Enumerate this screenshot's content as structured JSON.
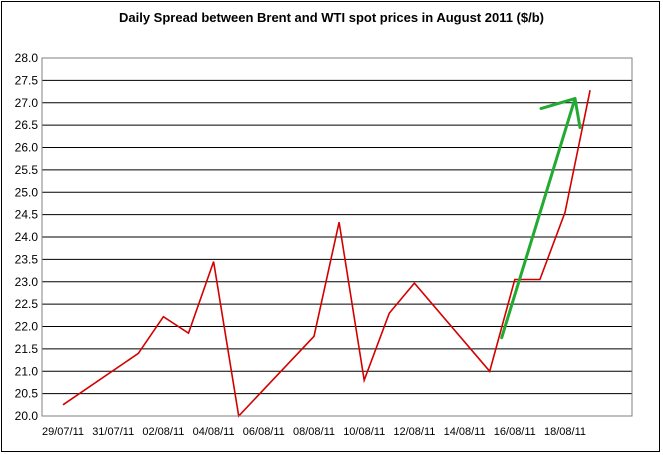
{
  "chart_data": {
    "type": "line",
    "title": "Daily Spread between Brent and WTI spot prices in August 2011 ($/b)",
    "xlabel": "",
    "ylabel": "",
    "ylim": [
      20.0,
      28.0
    ],
    "y_ticks": [
      "20.0",
      "20.5",
      "21.0",
      "21.5",
      "22.0",
      "22.5",
      "23.0",
      "23.5",
      "24.0",
      "24.5",
      "25.0",
      "25.5",
      "26.0",
      "26.5",
      "27.0",
      "27.5",
      "28.0"
    ],
    "x_ticks": [
      "29/07/11",
      "31/07/11",
      "02/08/11",
      "04/08/11",
      "06/08/11",
      "08/08/11",
      "10/08/11",
      "12/08/11",
      "14/08/11",
      "16/08/11",
      "18/08/11"
    ],
    "grid": true,
    "legend": "none",
    "series": [
      {
        "color": "#d40000",
        "points": [
          {
            "x": "29/07/11",
            "y": 20.25
          },
          {
            "x": "01/08/11",
            "y": 21.4
          },
          {
            "x": "02/08/11",
            "y": 22.22
          },
          {
            "x": "03/08/11",
            "y": 21.85
          },
          {
            "x": "04/08/11",
            "y": 23.45
          },
          {
            "x": "05/08/11",
            "y": 20.0
          },
          {
            "x": "08/08/11",
            "y": 21.78
          },
          {
            "x": "09/08/11",
            "y": 24.33
          },
          {
            "x": "10/08/11",
            "y": 20.8
          },
          {
            "x": "11/08/11",
            "y": 22.3
          },
          {
            "x": "12/08/11",
            "y": 22.97
          },
          {
            "x": "15/08/11",
            "y": 21.0
          },
          {
            "x": "16/08/11",
            "y": 23.05
          },
          {
            "x": "17/08/11",
            "y": 23.05
          },
          {
            "x": "18/08/11",
            "y": 24.55
          },
          {
            "x": "19/08/11",
            "y": 27.28
          }
        ]
      }
    ],
    "annotation": {
      "type": "arrow",
      "color": "#22aa33",
      "from": {
        "x": "15/08/11",
        "y": 21.75
      },
      "to": {
        "x": "18/08/11",
        "y": 27.05
      }
    }
  }
}
